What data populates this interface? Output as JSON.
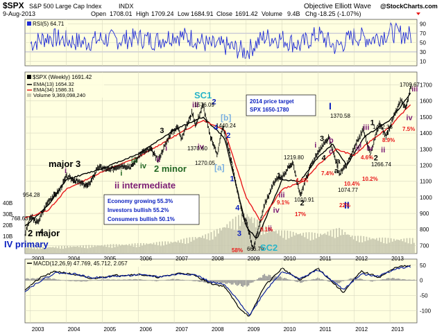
{
  "header": {
    "symbol": "$SPX",
    "name": "S&P 500 Large Cap Index",
    "exchange": "INDX",
    "source": "Objective Elliott Wave",
    "site": "@StockCharts.com",
    "date": "9-Aug-2013",
    "open_label": "Open",
    "open": "1708.01",
    "high_label": "High",
    "high": "1709.24",
    "low_label": "Low",
    "low": "1684.91",
    "close_label": "Close",
    "close": "1691.42",
    "volume_label": "Volume",
    "volume": "9.4B",
    "chg_label": "Chg",
    "chg": "-18.25 (-1.07%)"
  },
  "colors": {
    "panel_bg": "#ffffe0",
    "price": "#000000",
    "ema13": "#000000",
    "ema34": "#e8181c",
    "volume": "#c8c8b0",
    "rsi_fill": "#1f2bd6",
    "macd_hist": "#9a9a9a",
    "signal": "#0a1f9c",
    "grid": "#d8d8c0",
    "wave_blue": "#0a1fbf",
    "wave_purple": "#7b1c74",
    "wave_green": "#226622",
    "wave_red": "#e81818",
    "wave_cyan": "#28b4c8"
  },
  "chart_data": [
    {
      "type": "line",
      "panel": "rsi",
      "legend": "RSI(5) 64.71",
      "ylim": [
        0,
        100
      ],
      "y_ticks": [
        10,
        30,
        50,
        70,
        90
      ],
      "x_ticks": [
        2003,
        2004,
        2005,
        2006,
        2007,
        2008,
        2009,
        2010,
        2011,
        2012,
        2013
      ],
      "xlim": [
        2002.85,
        2013.75
      ],
      "series": [
        {
          "name": "RSI(5)",
          "x": [
            2003.0,
            2003.5,
            2004.0,
            2004.5,
            2005.0,
            2005.5,
            2006.0,
            2006.5,
            2007.0,
            2007.5,
            2008.0,
            2008.5,
            2009.0,
            2009.5,
            2010.0,
            2010.5,
            2011.0,
            2011.5,
            2012.0,
            2012.5,
            2013.0,
            2013.6
          ],
          "values": [
            48,
            62,
            55,
            50,
            58,
            56,
            60,
            54,
            66,
            60,
            44,
            42,
            30,
            62,
            58,
            44,
            68,
            40,
            64,
            58,
            72,
            64.71
          ]
        }
      ]
    },
    {
      "type": "line",
      "panel": "price",
      "title": "$SPX (Weekly) 1691.42",
      "ylim": [
        650,
        1780
      ],
      "y_ticks": [
        700,
        800,
        900,
        1000,
        1100,
        1200,
        1300,
        1400,
        1500,
        1600,
        1700
      ],
      "y_ticks_left": [
        "40B",
        "30B",
        "20B",
        "10B"
      ],
      "x_ticks": [
        2003,
        2004,
        2005,
        2006,
        2007,
        2008,
        2009,
        2010,
        2011,
        2012,
        2013
      ],
      "xlim": [
        2002.85,
        2013.75
      ],
      "series": [
        {
          "name": "$SPX",
          "x": [
            2002.85,
            2003.0,
            2003.2,
            2003.5,
            2003.8,
            2004.0,
            2004.2,
            2004.6,
            2004.9,
            2005.2,
            2005.5,
            2005.8,
            2006.1,
            2006.35,
            2006.55,
            2006.9,
            2007.1,
            2007.2,
            2007.5,
            2007.6,
            2007.8,
            2008.0,
            2008.2,
            2008.35,
            2008.55,
            2008.8,
            2008.9,
            2009.0,
            2009.2,
            2009.5,
            2009.8,
            2010.0,
            2010.3,
            2010.5,
            2010.8,
            2011.0,
            2011.3,
            2011.6,
            2011.8,
            2012.0,
            2012.25,
            2012.45,
            2012.7,
            2012.9,
            2013.1,
            2013.3,
            2013.45,
            2013.6
          ],
          "values": [
            768.63,
            880,
            840,
            980,
            1040,
            1130,
            1110,
            1070,
            1190,
            1170,
            1200,
            1190,
            1280,
            1300,
            1230,
            1400,
            1440,
            1370,
            1530,
            1450,
            1576.09,
            1380,
            1270,
            1440,
            1270,
            1000,
            880,
            850,
            676.53,
            950,
            1100,
            1130,
            1219.8,
            1010.91,
            1200,
            1280,
            1370.58,
            1150,
            1200,
            1300,
            1422.38,
            1266.74,
            1460,
            1380,
            1500,
            1600,
            1560,
            1709.67
          ]
        },
        {
          "name": "EMA(13) 1654.32",
          "x": [
            2002.85,
            2003.5,
            2004.0,
            2005.0,
            2006.0,
            2007.0,
            2007.8,
            2008.4,
            2009.0,
            2009.3,
            2010.0,
            2010.5,
            2011.0,
            2011.4,
            2011.8,
            2012.3,
            2013.0,
            2013.6
          ],
          "values": [
            820,
            950,
            1110,
            1180,
            1270,
            1420,
            1500,
            1370,
            820,
            740,
            1110,
            1100,
            1250,
            1330,
            1200,
            1380,
            1480,
            1654.32
          ]
        },
        {
          "name": "EMA(34) 1586.31",
          "x": [
            2002.85,
            2003.5,
            2004.0,
            2005.0,
            2006.0,
            2007.0,
            2007.8,
            2008.4,
            2009.0,
            2009.4,
            2010.0,
            2010.6,
            2011.0,
            2011.5,
            2012.0,
            2012.5,
            2013.0,
            2013.6
          ],
          "values": [
            870,
            920,
            1050,
            1160,
            1250,
            1380,
            1480,
            1420,
            1000,
            850,
            1050,
            1100,
            1200,
            1300,
            1260,
            1360,
            1440,
            1586.31
          ]
        }
      ],
      "volume": {
        "label": "Volume 9,369,098,240",
        "x": [
          2003,
          2004,
          2005,
          2006,
          2007,
          2008,
          2008.8,
          2009,
          2009.5,
          2010,
          2011,
          2011.6,
          2012,
          2013
        ],
        "values": [
          5,
          6,
          7,
          8,
          10,
          16,
          30,
          34,
          22,
          18,
          16,
          20,
          14,
          12
        ]
      },
      "price_labels": [
        "954.28",
        "768.63",
        "1576.09",
        "1440.24",
        "1370.60",
        "1270.05",
        "666.79",
        "1219.80",
        "1010.91",
        "1370.58",
        "1074.77",
        "1422.38",
        "1266.74",
        "1709.67"
      ],
      "wave_labels": [
        "major 3",
        "2 major",
        "IV primary",
        "ii intermediate",
        "2 minor",
        "SC1",
        "SC2",
        "[b]",
        "[a]",
        "I",
        "II"
      ],
      "percent_labels": [
        "58%",
        "9.1%",
        "17%",
        "9.1%",
        "4.4%",
        "7.4%",
        "22%",
        "10.4%",
        "10.2%",
        "4.6%",
        "8.9%",
        "7.5%"
      ],
      "annotations": {
        "target_title": "2014 price target",
        "target_range": "SPX 1650-1780",
        "economy": "Economy growing 55.3%",
        "investors": "Investors bullish 55.2%",
        "consumers": "Consumers bullish 50.1%"
      }
    },
    {
      "type": "line",
      "panel": "macd",
      "legend": "MACD(12,26,9) 47.769, 45.712, 2.057",
      "ylim": [
        -140,
        70
      ],
      "y_ticks": [
        50,
        0,
        -50,
        -100
      ],
      "x_ticks": [
        2003,
        2004,
        2005,
        2006,
        2007,
        2008,
        2009,
        2010,
        2011,
        2012,
        2013
      ],
      "xlim": [
        2002.85,
        2013.75
      ],
      "series": [
        {
          "name": "MACD",
          "x": [
            2002.85,
            2003.3,
            2003.7,
            2004.2,
            2004.7,
            2005.2,
            2006.0,
            2006.6,
            2007.2,
            2007.6,
            2008.0,
            2008.4,
            2008.8,
            2009.1,
            2009.5,
            2010.0,
            2010.5,
            2011.0,
            2011.7,
            2012.2,
            2012.7,
            2013.2,
            2013.6
          ],
          "values": [
            -30,
            10,
            30,
            20,
            5,
            15,
            20,
            10,
            25,
            15,
            -10,
            -20,
            -90,
            -120,
            -20,
            40,
            0,
            40,
            -40,
            30,
            10,
            45,
            47.769
          ]
        },
        {
          "name": "Signal",
          "x": [
            2002.85,
            2003.3,
            2003.7,
            2004.2,
            2004.7,
            2005.2,
            2006.0,
            2006.6,
            2007.2,
            2007.6,
            2008.0,
            2008.4,
            2008.8,
            2009.1,
            2009.5,
            2010.0,
            2010.5,
            2011.0,
            2011.7,
            2012.2,
            2012.7,
            2013.2,
            2013.6
          ],
          "values": [
            -35,
            0,
            25,
            22,
            8,
            12,
            18,
            12,
            22,
            18,
            -5,
            -15,
            -70,
            -115,
            -40,
            30,
            5,
            35,
            -30,
            20,
            15,
            40,
            45.712
          ]
        }
      ],
      "histogram": {
        "x": [
          2003,
          2003.5,
          2004,
          2004.5,
          2005,
          2005.5,
          2006,
          2006.5,
          2007,
          2007.5,
          2008,
          2008.5,
          2009,
          2009.5,
          2010,
          2010.5,
          2011,
          2011.5,
          2012,
          2012.5,
          2013,
          2013.5
        ],
        "values": [
          6,
          8,
          -2,
          -4,
          3,
          2,
          4,
          -3,
          5,
          -2,
          -8,
          -10,
          -20,
          18,
          10,
          -8,
          8,
          -12,
          10,
          -4,
          8,
          2.057
        ]
      }
    }
  ]
}
